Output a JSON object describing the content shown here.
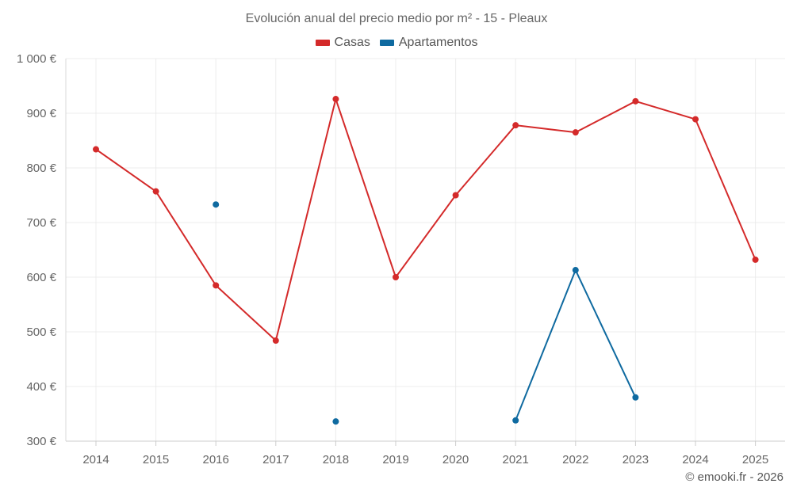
{
  "chart_data": {
    "type": "line",
    "title": "Evolución anual del precio medio por m² - 15 - Pleaux",
    "categories": [
      "2014",
      "2015",
      "2016",
      "2017",
      "2018",
      "2019",
      "2020",
      "2021",
      "2022",
      "2023",
      "2024",
      "2025"
    ],
    "ylim": [
      300,
      1000
    ],
    "yticks": [
      300,
      400,
      500,
      600,
      700,
      800,
      900,
      1000
    ],
    "ytick_labels": [
      "300 €",
      "400 €",
      "500 €",
      "600 €",
      "700 €",
      "800 €",
      "900 €",
      "1 000 €"
    ],
    "grid": true,
    "legend_position": "top-center",
    "series": [
      {
        "name": "Casas",
        "color": "#d42a2a",
        "values": [
          834,
          757,
          585,
          484,
          926,
          600,
          750,
          878,
          865,
          922,
          889,
          632
        ]
      },
      {
        "name": "Apartamentos",
        "color": "#0f6aa0",
        "values": [
          null,
          null,
          733,
          null,
          336,
          null,
          null,
          338,
          613,
          380,
          null,
          null
        ]
      }
    ]
  },
  "legend": {
    "casas": "Casas",
    "apartamentos": "Apartamentos"
  },
  "credit": "© emooki.fr - 2026"
}
